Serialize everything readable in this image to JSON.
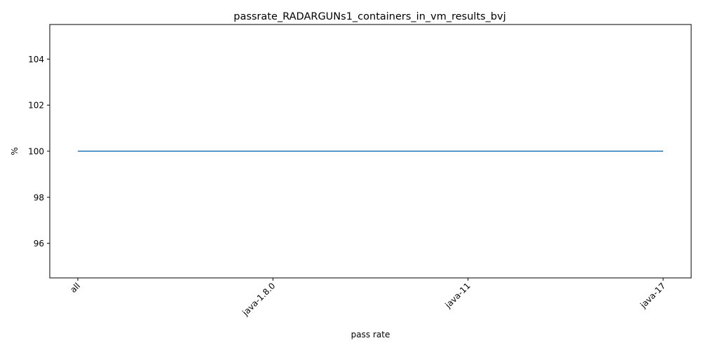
{
  "chart_data": {
    "type": "line",
    "title": "passrate_RADARGUNs1_containers_in_vm_results_bvj",
    "xlabel": "pass rate",
    "ylabel": "%",
    "categories": [
      "all",
      "java-1.8.0",
      "java-11",
      "java-17"
    ],
    "series": [
      {
        "values": [
          100,
          100,
          100,
          100
        ],
        "color": "#1f77b4"
      }
    ],
    "ylim": [
      94.5,
      105.5
    ],
    "yticks": [
      96,
      98,
      100,
      102,
      104
    ],
    "grid": false,
    "x_tick_rotation": -45
  }
}
